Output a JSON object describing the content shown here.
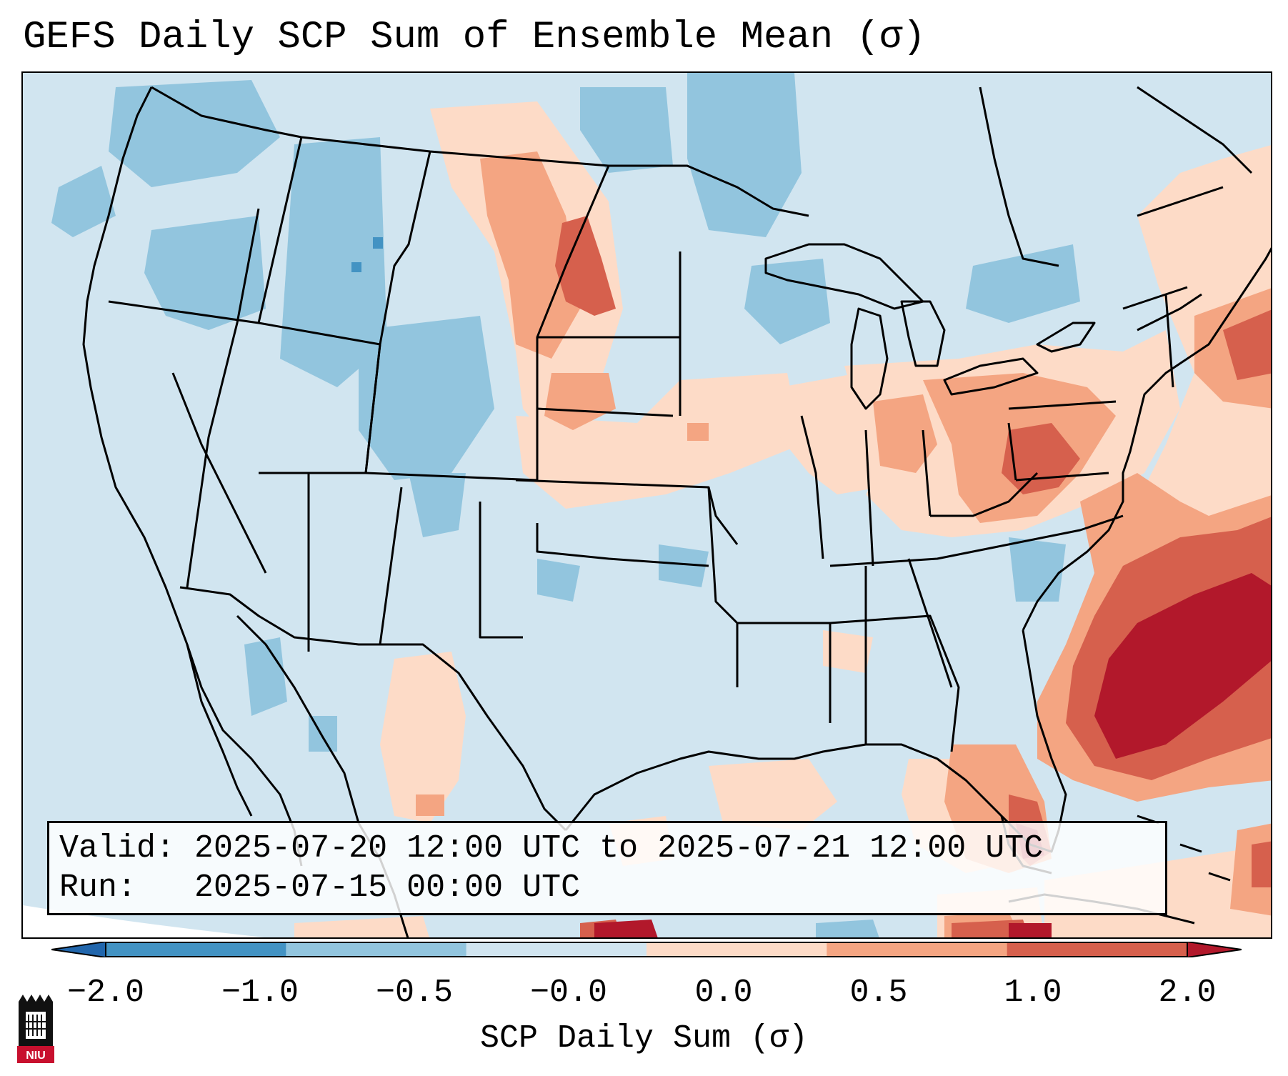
{
  "title": "GEFS Daily SCP Sum of Ensemble Mean (σ)",
  "info": {
    "valid_label": "Valid:",
    "valid_value": "2025-07-20 12:00 UTC to 2025-07-21 12:00 UTC",
    "run_label": "Run:",
    "run_value": "2025-07-15 00:00 UTC"
  },
  "colorbar": {
    "label": "SCP Daily Sum (σ)",
    "ticks": [
      "−2.0",
      "−1.0",
      "−0.5",
      "−0.0",
      "0.0",
      "0.5",
      "1.0",
      "2.0"
    ],
    "colors": [
      "#2166ac",
      "#4393c3",
      "#92c5de",
      "#d1e5f0",
      "#fddbc7",
      "#f4a582",
      "#d6604d",
      "#b2182b"
    ]
  },
  "logo": {
    "text": "NIU",
    "icon": "niu-logo-icon"
  }
}
